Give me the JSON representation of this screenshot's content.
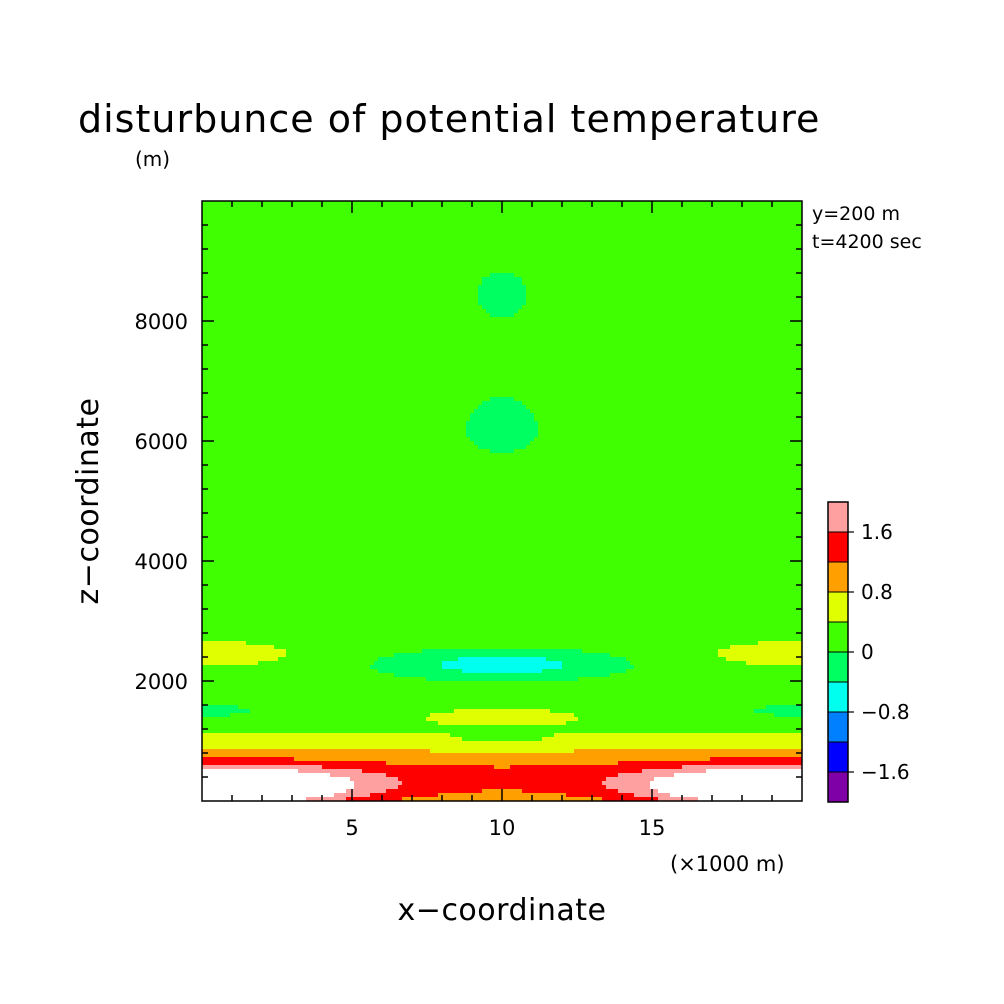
{
  "chart_data": {
    "type": "heatmap",
    "title": "disturbunce of potential temperature",
    "y_unit": "(m)",
    "xlabel": "x−coordinate",
    "ylabel": "z−coordinate",
    "x_unit": "(×1000 m)",
    "xlim": [
      0,
      20
    ],
    "ylim": [
      0,
      10000
    ],
    "x_ticks": [
      5,
      10,
      15
    ],
    "x_tick_labels": [
      "5",
      "10",
      "15"
    ],
    "y_ticks": [
      2000,
      4000,
      6000,
      8000
    ],
    "y_tick_labels": [
      "2000",
      "4000",
      "6000",
      "8000"
    ],
    "info": [
      "y=200 m",
      "t=4200 sec"
    ],
    "grid": false,
    "legend_position": "right",
    "colorbar": {
      "levels": [
        -2.0,
        -1.6,
        -1.2,
        -0.8,
        -0.4,
        0,
        0.4,
        0.8,
        1.2,
        1.6,
        2.0
      ],
      "colors": [
        "#8000a8",
        "#0000ff",
        "#0080ff",
        "#00ffee",
        "#00ff60",
        "#40ff00",
        "#e0ff00",
        "#ffa000",
        "#ff0000",
        "#ffa0a0"
      ],
      "over_color": "#ffffff",
      "tick_labels": [
        "1.6",
        "0.8",
        "0",
        "−0.8",
        "−1.6"
      ],
      "tick_values": [
        1.6,
        0.8,
        0,
        -0.8,
        -1.6
      ]
    },
    "field_description": "symmetric about x=10; warm (>1.6) near surface at domain edges, cold (-0.8..-0.4) lens near z=2300 m at center and z=1500 m at edges, near-zero aloft"
  }
}
